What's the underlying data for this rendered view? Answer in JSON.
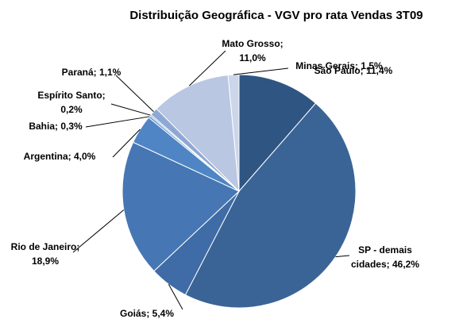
{
  "chart_data": {
    "type": "pie",
    "title": "Distribuição Geográfica - VGV pro rata Vendas 3T09",
    "values": [
      11.4,
      46.2,
      5.4,
      18.9,
      4.0,
      0.3,
      0.2,
      1.1,
      11.0,
      1.5
    ],
    "value_labels": [
      [
        "São Paulo; 11,4%"
      ],
      [
        "SP - demais",
        "cidades; 46,2%"
      ],
      [
        "Goiás; 5,4%"
      ],
      [
        "Rio de Janeiro;",
        "18,9%"
      ],
      [
        "Argentina; 4,0%"
      ],
      [
        "Bahia; 0,3%"
      ],
      [
        "Espírito Santo;",
        "0,2%"
      ],
      [
        "Paraná; 1,1%"
      ],
      [
        "Mato Grosso;",
        "11,0%"
      ],
      [
        "Minas Gerais; 1,5%"
      ]
    ],
    "colors": [
      "#2f5582",
      "#3b6496",
      "#3f6ca6",
      "#4677b4",
      "#4f85c4",
      "#6c93c9",
      "#7b9ccd",
      "#8da8d3",
      "#b9c7e2",
      "#ccd6ea"
    ]
  }
}
